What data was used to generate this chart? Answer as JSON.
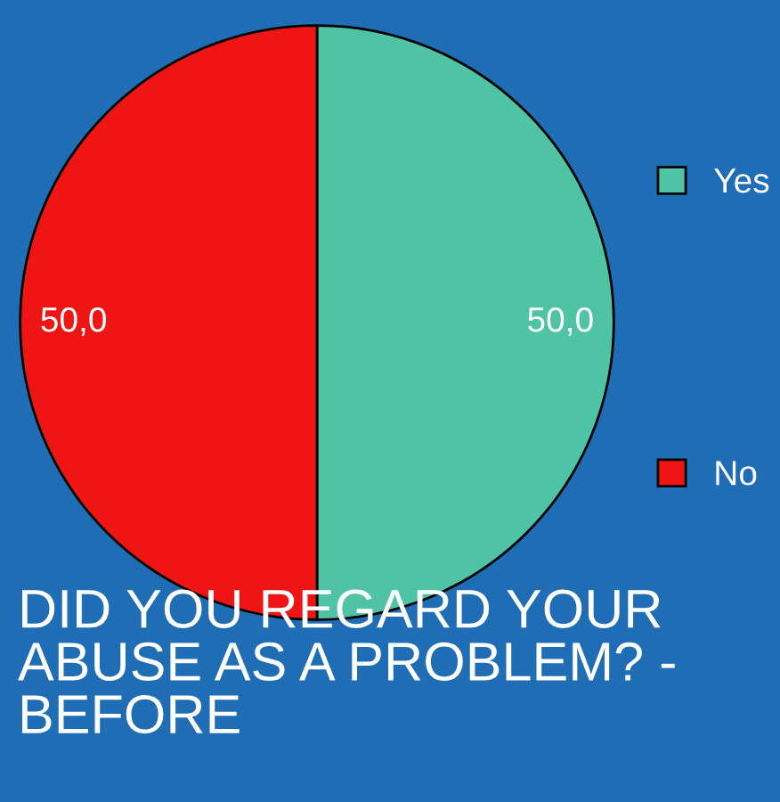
{
  "chart_data": {
    "type": "pie",
    "title": "DID YOU REGARD YOUR ABUSE AS A PROBLEM? - BEFORE",
    "categories": [
      "Yes",
      "No"
    ],
    "values": [
      50.0,
      50.0
    ],
    "value_labels": [
      "50,0",
      "50,0"
    ],
    "colors": [
      "#4fc4a5",
      "#f01515"
    ],
    "legend": "right"
  }
}
